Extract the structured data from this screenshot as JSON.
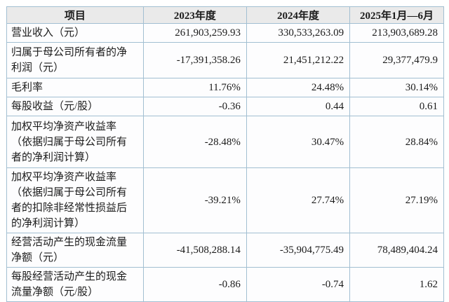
{
  "table": {
    "columns": [
      "项目",
      "2023年度",
      "2024年度",
      "2025年1月—6月"
    ],
    "rows": [
      {
        "label": "营业收入（元）",
        "values": [
          "261,903,259.93",
          "330,533,263.09",
          "213,903,689.28"
        ]
      },
      {
        "label": "归属于母公司所有者的净\n利润（元）",
        "values": [
          "-17,391,358.26",
          "21,451,212.22",
          "29,377,479.9"
        ]
      },
      {
        "label": "毛利率",
        "values": [
          "11.76%",
          "24.48%",
          "30.14%"
        ]
      },
      {
        "label": "每股收益（元/股）",
        "values": [
          "-0.36",
          "0.44",
          "0.61"
        ]
      },
      {
        "label": "加权平均净资产收益率\n（依据归属于母公司所有\n者的净利润计算）",
        "values": [
          "-28.48%",
          "30.47%",
          "28.84%"
        ]
      },
      {
        "label": "加权平均净资产收益率\n（依据归属于母公司所有\n者的扣除非经常性损益后\n的净利润计算）",
        "values": [
          "-39.21%",
          "27.74%",
          "27.19%"
        ]
      },
      {
        "label": "经营活动产生的现金流量\n净额（元）",
        "values": [
          "-41,508,288.14",
          "-35,904,775.49",
          "78,489,404.24"
        ]
      },
      {
        "label": "每股经营活动产生的现金\n流量净额（元/股）",
        "values": [
          "-0.86",
          "-0.74",
          "1.62"
        ]
      }
    ],
    "colors": {
      "border": "#a2bfd2",
      "header_bg": "#eaeaea",
      "cell_bg": "#fdfdfe",
      "text": "#1b1b1b"
    }
  },
  "chart_data": {
    "type": "table",
    "title": "",
    "columns": [
      "项目",
      "2023年度",
      "2024年度",
      "2025年1月—6月"
    ],
    "rows": [
      [
        "营业收入（元）",
        "261,903,259.93",
        "330,533,263.09",
        "213,903,689.28"
      ],
      [
        "归属于母公司所有者的净利润（元）",
        "-17,391,358.26",
        "21,451,212.22",
        "29,377,479.9"
      ],
      [
        "毛利率",
        "11.76%",
        "24.48%",
        "30.14%"
      ],
      [
        "每股收益（元/股）",
        "-0.36",
        "0.44",
        "0.61"
      ],
      [
        "加权平均净资产收益率（依据归属于母公司所有者的净利润计算）",
        "-28.48%",
        "30.47%",
        "28.84%"
      ],
      [
        "加权平均净资产收益率（依据归属于母公司所有者的扣除非经常性损益后的净利润计算）",
        "-39.21%",
        "27.74%",
        "27.19%"
      ],
      [
        "经营活动产生的现金流量净额（元）",
        "-41,508,288.14",
        "-35,904,775.49",
        "78,489,404.24"
      ],
      [
        "每股经营活动产生的现金流量净额（元/股）",
        "-0.86",
        "-0.74",
        "1.62"
      ]
    ]
  }
}
